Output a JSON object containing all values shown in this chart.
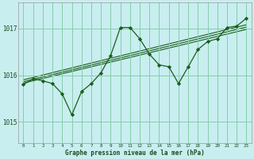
{
  "title": "Graphe pression niveau de la mer (hPa)",
  "bg_color": "#c8eef0",
  "grid_color": "#88ccaa",
  "line_color": "#1a5e1a",
  "marker_color": "#1a5e1a",
  "label_color": "#1a4a1a",
  "ylabel_ticks": [
    1015,
    1016,
    1017
  ],
  "xticks": [
    0,
    1,
    2,
    3,
    4,
    5,
    6,
    7,
    8,
    9,
    10,
    11,
    12,
    13,
    14,
    15,
    16,
    17,
    18,
    19,
    20,
    21,
    22,
    23
  ],
  "xlim": [
    -0.5,
    23.5
  ],
  "ylim": [
    1014.55,
    1017.55
  ],
  "main_series": {
    "x": [
      0,
      1,
      2,
      3,
      4,
      5,
      6,
      7,
      8,
      9,
      10,
      11,
      12,
      13,
      14,
      15,
      16,
      17,
      18,
      19,
      20,
      21,
      22,
      23
    ],
    "y": [
      1015.8,
      1015.92,
      1015.88,
      1015.82,
      1015.6,
      1015.15,
      1015.65,
      1015.82,
      1016.05,
      1016.42,
      1017.02,
      1017.02,
      1016.78,
      1016.45,
      1016.22,
      1016.18,
      1015.82,
      1016.18,
      1016.55,
      1016.72,
      1016.78,
      1017.02,
      1017.05,
      1017.22
    ]
  },
  "trend_lines": [
    {
      "x0": 0,
      "y0": 1015.83,
      "x1": 23,
      "y1": 1016.98
    },
    {
      "x0": 0,
      "y0": 1015.86,
      "x1": 23,
      "y1": 1017.03
    },
    {
      "x0": 0,
      "y0": 1015.9,
      "x1": 23,
      "y1": 1017.08
    }
  ]
}
